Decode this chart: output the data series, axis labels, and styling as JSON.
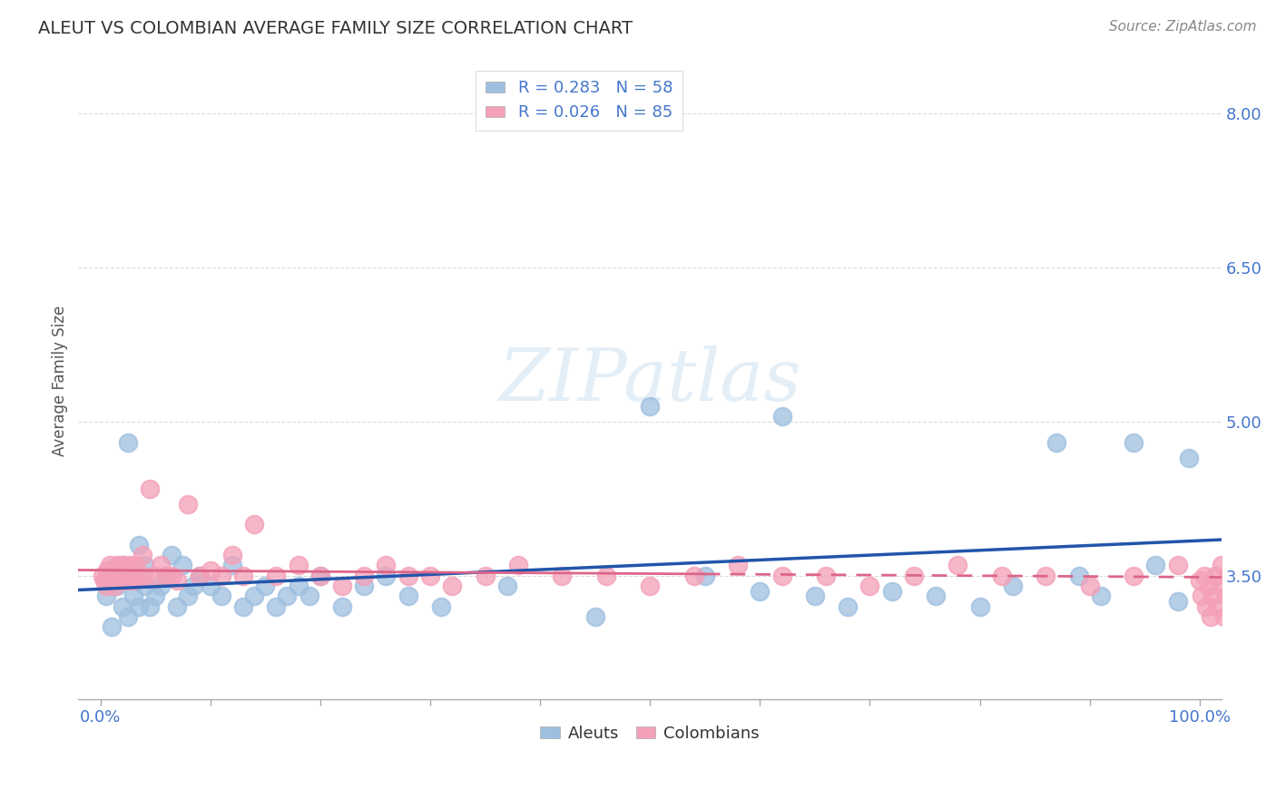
{
  "title": "ALEUT VS COLOMBIAN AVERAGE FAMILY SIZE CORRELATION CHART",
  "source": "Source: ZipAtlas.com",
  "ylabel": "Average Family Size",
  "xlim": [
    -2,
    102
  ],
  "ylim": [
    2.3,
    8.5
  ],
  "yticks": [
    3.5,
    5.0,
    6.5,
    8.0
  ],
  "ytick_labels": [
    "3.50",
    "5.00",
    "6.50",
    "8.00"
  ],
  "xtick_positions": [
    0,
    10,
    20,
    30,
    40,
    50,
    60,
    70,
    80,
    90,
    100
  ],
  "xtick_labels_show": [
    "0.0%",
    "",
    "",
    "",
    "",
    "",
    "",
    "",
    "",
    "",
    "100.0%"
  ],
  "legend_label1": "R = 0.283   N = 58",
  "legend_label2": "R = 0.026   N = 85",
  "legend_label_bottom1": "Aleuts",
  "legend_label_bottom2": "Colombians",
  "aleut_color": "#9ebfe0",
  "colombian_color": "#f4a0b8",
  "trend_aleut_color": "#2255aa",
  "trend_colombian_color": "#dd6688",
  "background_color": "#ffffff",
  "grid_color": "#cccccc",
  "title_color": "#333333",
  "axis_color": "#4477cc",
  "aleut_x": [
    0.5,
    1.0,
    1.5,
    2.0,
    2.0,
    2.5,
    2.5,
    3.0,
    3.0,
    3.5,
    3.5,
    4.0,
    4.0,
    4.5,
    5.0,
    5.5,
    6.0,
    6.5,
    7.0,
    7.5,
    8.0,
    8.5,
    9.0,
    10.0,
    11.0,
    12.0,
    13.0,
    14.0,
    15.0,
    16.0,
    17.0,
    18.0,
    19.0,
    20.0,
    22.0,
    24.0,
    26.0,
    28.0,
    31.0,
    37.0,
    45.0,
    50.0,
    55.0,
    60.0,
    62.0,
    65.0,
    68.0,
    72.0,
    76.0,
    80.0,
    83.0,
    87.0,
    89.0,
    91.0,
    94.0,
    96.0,
    98.0,
    99.0
  ],
  "aleut_y": [
    3.3,
    3.0,
    3.4,
    3.6,
    3.2,
    3.1,
    4.8,
    3.5,
    3.3,
    3.8,
    3.2,
    3.6,
    3.4,
    3.2,
    3.3,
    3.4,
    3.5,
    3.7,
    3.2,
    3.6,
    3.3,
    3.4,
    3.5,
    3.4,
    3.3,
    3.6,
    3.2,
    3.3,
    3.4,
    3.2,
    3.3,
    3.4,
    3.3,
    3.5,
    3.2,
    3.4,
    3.5,
    3.3,
    3.2,
    3.4,
    3.1,
    5.15,
    3.5,
    3.35,
    5.05,
    3.3,
    3.2,
    3.35,
    3.3,
    3.2,
    3.4,
    4.8,
    3.5,
    3.3,
    4.8,
    3.6,
    3.25,
    4.65
  ],
  "colombian_x": [
    0.2,
    0.4,
    0.5,
    0.6,
    0.7,
    0.8,
    0.9,
    1.0,
    1.1,
    1.2,
    1.3,
    1.4,
    1.5,
    1.6,
    1.7,
    1.8,
    1.9,
    2.0,
    2.1,
    2.2,
    2.3,
    2.4,
    2.5,
    2.6,
    2.7,
    2.8,
    2.9,
    3.0,
    3.2,
    3.5,
    3.8,
    4.0,
    4.5,
    5.0,
    5.5,
    6.0,
    6.5,
    7.0,
    8.0,
    9.0,
    10.0,
    11.0,
    12.0,
    13.0,
    14.0,
    16.0,
    18.0,
    20.0,
    22.0,
    24.0,
    26.0,
    28.0,
    30.0,
    32.0,
    35.0,
    38.0,
    42.0,
    46.0,
    50.0,
    54.0,
    58.0,
    62.0,
    66.0,
    70.0,
    74.0,
    78.0,
    82.0,
    86.0,
    90.0,
    94.0,
    98.0,
    100.0,
    100.2,
    100.4,
    100.6,
    100.8,
    101.0,
    101.2,
    101.4,
    101.6,
    101.8,
    102.0,
    102.2,
    102.4,
    102.6
  ],
  "colombian_y": [
    3.5,
    3.45,
    3.4,
    3.55,
    3.5,
    3.45,
    3.6,
    3.5,
    3.5,
    3.55,
    3.4,
    3.5,
    3.6,
    3.5,
    3.45,
    3.5,
    3.55,
    3.45,
    3.6,
    3.5,
    3.5,
    3.55,
    3.45,
    3.5,
    3.6,
    3.5,
    3.5,
    3.45,
    3.6,
    3.5,
    3.7,
    3.5,
    4.35,
    3.5,
    3.6,
    3.5,
    3.5,
    3.45,
    4.2,
    3.5,
    3.55,
    3.5,
    3.7,
    3.5,
    4.0,
    3.5,
    3.6,
    3.5,
    3.4,
    3.5,
    3.6,
    3.5,
    3.5,
    3.4,
    3.5,
    3.6,
    3.5,
    3.5,
    3.4,
    3.5,
    3.6,
    3.5,
    3.5,
    3.4,
    3.5,
    3.6,
    3.5,
    3.5,
    3.4,
    3.5,
    3.6,
    3.45,
    3.3,
    3.5,
    3.2,
    3.4,
    3.1,
    3.3,
    3.5,
    3.2,
    3.4,
    3.6,
    3.1,
    3.3,
    3.5
  ],
  "watermark_text": "ZIPatlas",
  "watermark_color": "#c8dff0",
  "watermark_color2": "#b0c8d8"
}
